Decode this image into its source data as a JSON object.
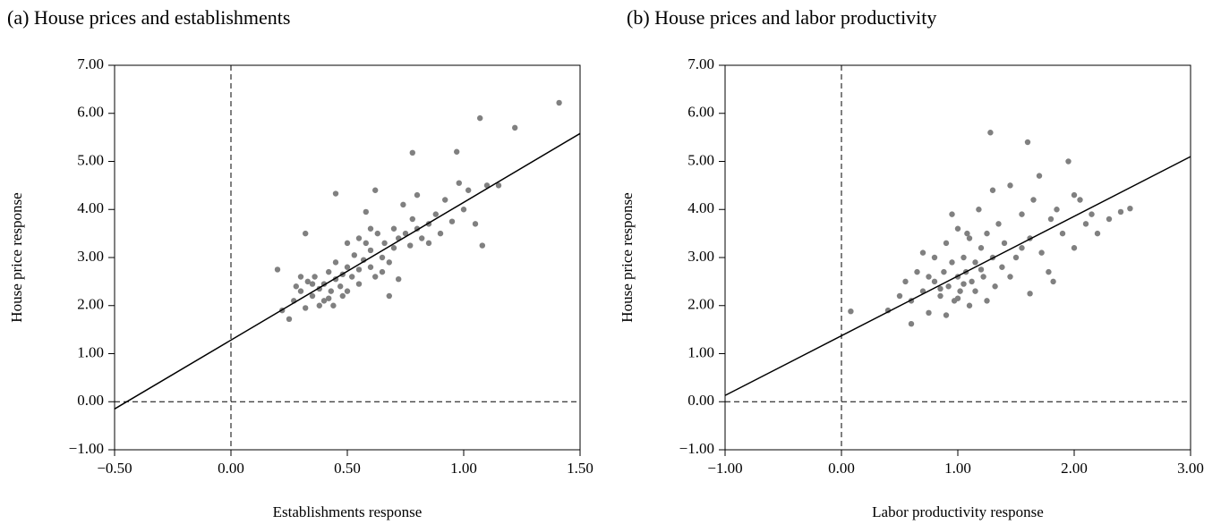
{
  "chart_data": [
    {
      "type": "scatter",
      "title": "(a) House prices and establishments",
      "x_label": "Establishments response",
      "y_label": "House price response",
      "color": "#808080",
      "line_color": "#000000",
      "zero_lines": true,
      "xlim": [
        -0.5,
        1.5
      ],
      "ylim": [
        -1,
        7
      ],
      "xticks": [
        {
          "value": -0.5,
          "label": "−0.50"
        },
        {
          "value": 0,
          "label": "0.00"
        },
        {
          "value": 0.5,
          "label": "0.50"
        },
        {
          "value": 1,
          "label": "1.00"
        },
        {
          "value": 1.5,
          "label": "1.50"
        }
      ],
      "yticks": [
        {
          "value": -1,
          "label": "−1.00"
        },
        {
          "value": 0,
          "label": "0.00"
        },
        {
          "value": 1,
          "label": "1.00"
        },
        {
          "value": 2,
          "label": "2.00"
        },
        {
          "value": 3,
          "label": "3.00"
        },
        {
          "value": 4,
          "label": "4.00"
        },
        {
          "value": 5,
          "label": "5.00"
        },
        {
          "value": 6,
          "label": "6.00"
        },
        {
          "value": 7,
          "label": "7.00"
        }
      ],
      "fit_line": {
        "x": [
          -0.5,
          1.5
        ],
        "y": [
          -0.15,
          5.58
        ]
      },
      "x": [
        0.22,
        0.25,
        0.27,
        0.3,
        0.32,
        0.33,
        0.35,
        0.36,
        0.38,
        0.4,
        0.4,
        0.42,
        0.43,
        0.45,
        0.45,
        0.47,
        0.48,
        0.5,
        0.5,
        0.52,
        0.53,
        0.55,
        0.55,
        0.57,
        0.58,
        0.6,
        0.6,
        0.62,
        0.63,
        0.65,
        0.66,
        0.68,
        0.7,
        0.7,
        0.72,
        0.74,
        0.75,
        0.77,
        0.78,
        0.8,
        0.8,
        0.82,
        0.85,
        0.88,
        0.9,
        0.92,
        0.95,
        0.97,
        1.0,
        1.02,
        1.05,
        1.07,
        1.08,
        1.1,
        1.15,
        1.22,
        1.41,
        0.78,
        0.45,
        0.32,
        0.2,
        0.28,
        0.38,
        0.42,
        0.48,
        0.35,
        0.3,
        0.55,
        0.6,
        0.65,
        0.5,
        0.44,
        0.68,
        0.72,
        0.85,
        0.58,
        0.98,
        0.62
      ],
      "y": [
        1.9,
        1.72,
        2.1,
        2.3,
        1.95,
        2.5,
        2.2,
        2.6,
        2.35,
        2.45,
        2.1,
        2.7,
        2.3,
        2.55,
        2.9,
        2.4,
        2.65,
        2.8,
        2.3,
        2.6,
        3.05,
        2.75,
        2.45,
        2.95,
        3.3,
        2.8,
        3.15,
        2.6,
        3.5,
        3.0,
        3.3,
        2.9,
        3.6,
        3.2,
        3.4,
        4.1,
        3.5,
        3.25,
        3.8,
        3.6,
        4.3,
        3.4,
        3.7,
        3.9,
        3.5,
        4.2,
        3.75,
        5.2,
        4.0,
        4.4,
        3.7,
        5.9,
        3.25,
        4.5,
        4.5,
        5.7,
        6.22,
        5.18,
        4.33,
        3.5,
        2.75,
        2.4,
        2.0,
        2.15,
        2.2,
        2.45,
        2.6,
        3.4,
        3.6,
        2.7,
        3.3,
        2.0,
        2.2,
        2.55,
        3.3,
        3.95,
        4.55,
        4.4
      ]
    },
    {
      "type": "scatter",
      "title": "(b) House prices and labor productivity",
      "x_label": "Labor productivity response",
      "y_label": "House price response",
      "color": "#808080",
      "line_color": "#000000",
      "zero_lines": true,
      "xlim": [
        -1,
        3
      ],
      "ylim": [
        -1,
        7
      ],
      "xticks": [
        {
          "value": -1,
          "label": "−1.00"
        },
        {
          "value": 0,
          "label": "0.00"
        },
        {
          "value": 1,
          "label": "1.00"
        },
        {
          "value": 2,
          "label": "2.00"
        },
        {
          "value": 3,
          "label": "3.00"
        }
      ],
      "yticks": [
        {
          "value": -1,
          "label": "−1.00"
        },
        {
          "value": 0,
          "label": "0.00"
        },
        {
          "value": 1,
          "label": "1.00"
        },
        {
          "value": 2,
          "label": "2.00"
        },
        {
          "value": 3,
          "label": "3.00"
        },
        {
          "value": 4,
          "label": "4.00"
        },
        {
          "value": 5,
          "label": "5.00"
        },
        {
          "value": 6,
          "label": "6.00"
        },
        {
          "value": 7,
          "label": "7.00"
        }
      ],
      "fit_line": {
        "x": [
          -1,
          3
        ],
        "y": [
          0.13,
          5.1
        ]
      },
      "x": [
        0.08,
        0.4,
        0.5,
        0.55,
        0.6,
        0.65,
        0.7,
        0.75,
        0.8,
        0.8,
        0.85,
        0.88,
        0.9,
        0.92,
        0.95,
        0.97,
        1.0,
        1.0,
        1.02,
        1.05,
        1.07,
        1.1,
        1.12,
        1.15,
        1.18,
        1.2,
        1.22,
        1.25,
        1.28,
        1.3,
        1.32,
        1.35,
        1.4,
        1.45,
        1.5,
        1.55,
        1.6,
        1.62,
        1.65,
        1.7,
        1.72,
        1.78,
        1.8,
        1.82,
        1.85,
        1.9,
        1.95,
        2.0,
        2.05,
        2.1,
        2.2,
        2.3,
        2.4,
        2.48,
        1.62,
        0.9,
        1.15,
        0.6,
        0.95,
        1.05,
        1.25,
        1.38,
        0.75,
        0.7,
        1.45,
        1.55,
        1.1,
        1.3,
        0.85,
        1.0,
        1.08,
        1.2,
        2.15,
        2.0
      ],
      "y": [
        1.88,
        1.9,
        2.2,
        2.5,
        2.1,
        2.7,
        2.3,
        1.85,
        2.5,
        3.0,
        2.2,
        2.7,
        3.3,
        2.4,
        2.9,
        2.1,
        2.6,
        3.6,
        2.3,
        3.0,
        2.7,
        3.4,
        2.5,
        2.9,
        4.0,
        3.2,
        2.6,
        3.5,
        5.6,
        3.0,
        2.4,
        3.7,
        3.3,
        4.5,
        3.0,
        3.9,
        5.4,
        3.4,
        4.2,
        4.7,
        3.1,
        2.7,
        3.8,
        2.5,
        4.0,
        3.5,
        5.0,
        4.3,
        4.2,
        3.7,
        3.5,
        3.8,
        3.95,
        4.02,
        2.25,
        1.8,
        2.3,
        1.62,
        3.9,
        2.45,
        2.1,
        2.8,
        2.6,
        3.1,
        2.6,
        3.2,
        2.0,
        4.4,
        2.35,
        2.15,
        3.5,
        2.75,
        3.9,
        3.2
      ]
    }
  ]
}
